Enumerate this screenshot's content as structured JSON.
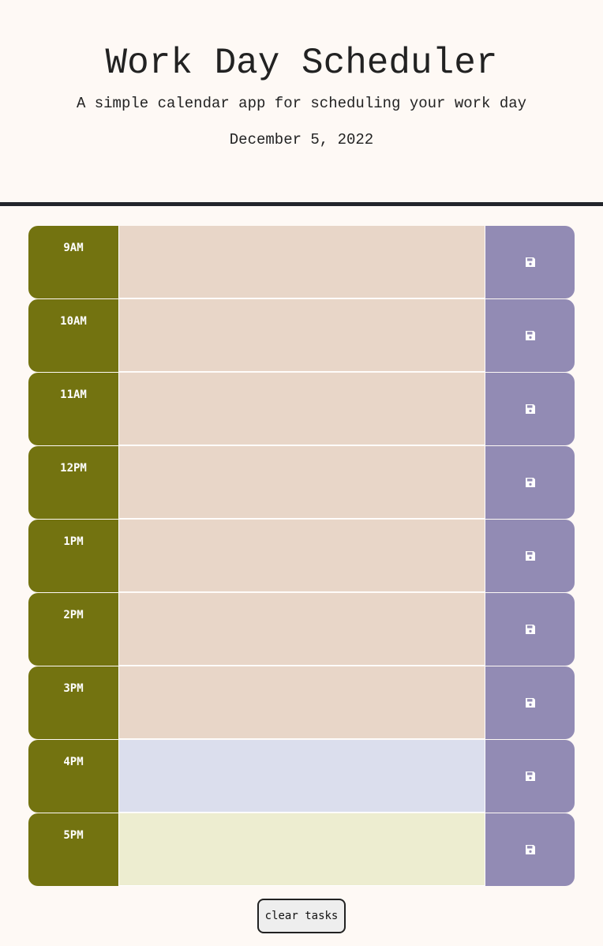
{
  "header": {
    "title": "Work Day Scheduler",
    "subtitle": "A simple calendar app for scheduling your work day",
    "current_day": "December 5, 2022"
  },
  "time_blocks": [
    {
      "hour": "9AM",
      "status": "past",
      "task": ""
    },
    {
      "hour": "10AM",
      "status": "past",
      "task": ""
    },
    {
      "hour": "11AM",
      "status": "past",
      "task": ""
    },
    {
      "hour": "12PM",
      "status": "past",
      "task": ""
    },
    {
      "hour": "1PM",
      "status": "past",
      "task": ""
    },
    {
      "hour": "2PM",
      "status": "past",
      "task": ""
    },
    {
      "hour": "3PM",
      "status": "past",
      "task": ""
    },
    {
      "hour": "4PM",
      "status": "present",
      "task": ""
    },
    {
      "hour": "5PM",
      "status": "future",
      "task": ""
    }
  ],
  "save_icon": "floppy-disk-icon",
  "clear_button_label": "clear tasks",
  "colors": {
    "background": "#fef9f5",
    "hour_label": "#737310",
    "past": "#e8d6c8",
    "present": "#dbdeed",
    "future": "#ededd0",
    "save_button": "#928bb4",
    "header_border": "#22252b"
  }
}
